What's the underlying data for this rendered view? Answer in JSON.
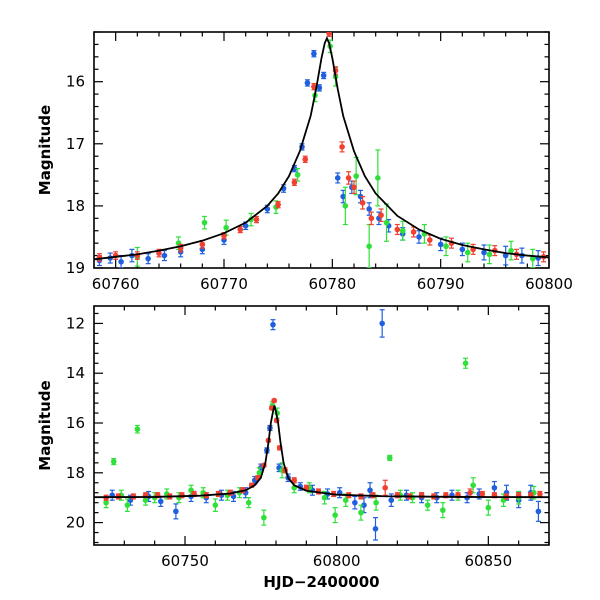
{
  "chart_data": [
    {
      "type": "scatter",
      "panel": "top",
      "xlabel": "",
      "ylabel": "Magnitude",
      "xlim": [
        60758,
        60800
      ],
      "ylim": [
        19.0,
        15.2
      ],
      "y_inverted": true,
      "xticks": [
        60760,
        60770,
        60780,
        60790,
        60800
      ],
      "yticks": [
        16,
        17,
        18,
        19
      ],
      "grid": false,
      "model_curve": {
        "name": "",
        "color": "#000000",
        "x": [
          60758,
          60760,
          60762,
          60764,
          60766,
          60768,
          60770,
          60772,
          60774,
          60775,
          60776,
          60777,
          60778,
          60778.5,
          60779,
          60779.3,
          60779.5,
          60779.7,
          60780,
          60780.5,
          60781,
          60782,
          60783,
          60784,
          60786,
          60788,
          60790,
          60792,
          60794,
          60796,
          60798,
          60800
        ],
        "y": [
          18.86,
          18.82,
          18.78,
          18.72,
          18.65,
          18.56,
          18.44,
          18.27,
          18.0,
          17.8,
          17.52,
          17.12,
          16.55,
          16.12,
          15.62,
          15.38,
          15.3,
          15.38,
          15.62,
          16.12,
          16.55,
          17.12,
          17.52,
          17.8,
          18.16,
          18.38,
          18.53,
          18.63,
          18.7,
          18.76,
          18.8,
          18.83
        ]
      },
      "series": [
        {
          "color": "#1f5fe0",
          "x": [
            60758.5,
            60759.5,
            60760.5,
            60761.5,
            60763,
            60764.5,
            60766,
            60768,
            60770,
            60772,
            60774,
            60775.5,
            60776.5,
            60777.2,
            60777.7,
            60778.3,
            60778.8,
            60779.2,
            60780.5,
            60781,
            60781.8,
            60782.6,
            60783.4,
            60784.3,
            60785.2,
            60786.5,
            60788,
            60790,
            60792,
            60794,
            60796,
            60797.5,
            60799
          ],
          "y": [
            18.88,
            18.84,
            18.9,
            18.8,
            18.85,
            18.8,
            18.74,
            18.7,
            18.55,
            18.32,
            18.05,
            17.72,
            17.4,
            17.05,
            16.02,
            15.55,
            16.1,
            15.9,
            17.55,
            17.85,
            17.7,
            17.85,
            18.05,
            18.2,
            18.32,
            18.45,
            18.5,
            18.62,
            18.7,
            18.75,
            18.8,
            18.8,
            18.84
          ],
          "yerr": [
            0.08,
            0.08,
            0.1,
            0.1,
            0.08,
            0.08,
            0.08,
            0.07,
            0.07,
            0.06,
            0.06,
            0.06,
            0.05,
            0.05,
            0.05,
            0.05,
            0.05,
            0.05,
            0.08,
            0.1,
            0.1,
            0.1,
            0.1,
            0.1,
            0.1,
            0.1,
            0.1,
            0.1,
            0.1,
            0.12,
            0.15,
            0.12,
            0.12
          ]
        },
        {
          "color": "#2fe03a",
          "x": [
            60762,
            60765.8,
            60768.2,
            60770.2,
            60772.5,
            60774.8,
            60776.8,
            60778.4,
            60779.8,
            60780.3,
            60781.2,
            60782.2,
            60783.4,
            60784.2,
            60785,
            60786.5,
            60788.5,
            60790.5,
            60792.5,
            60794.5,
            60796.5,
            60798.5
          ],
          "y": [
            18.82,
            18.6,
            18.27,
            18.35,
            18.22,
            18.02,
            17.5,
            16.22,
            15.43,
            15.92,
            18.0,
            17.52,
            18.65,
            17.55,
            18.27,
            18.4,
            18.45,
            18.65,
            18.75,
            18.78,
            18.72,
            18.85
          ],
          "yerr": [
            0.15,
            0.1,
            0.1,
            0.12,
            0.1,
            0.1,
            0.1,
            0.1,
            0.1,
            0.15,
            0.3,
            0.3,
            0.35,
            0.45,
            0.3,
            0.15,
            0.15,
            0.15,
            0.15,
            0.15,
            0.15,
            0.15
          ]
        },
        {
          "color": "#f04030",
          "x": [
            60758.5,
            60760,
            60762,
            60764,
            60766,
            60768,
            60770,
            60771.5,
            60773,
            60775,
            60776.5,
            60777.5,
            60778.3,
            60779.7,
            60780.3,
            60780.9,
            60781.5,
            60782,
            60782.8,
            60783.6,
            60784.5,
            60786,
            60787.5,
            60789,
            60791,
            60793,
            60795,
            60797,
            60799.5
          ],
          "y": [
            18.83,
            18.8,
            18.8,
            18.76,
            18.68,
            18.62,
            18.48,
            18.38,
            18.22,
            17.98,
            17.62,
            17.25,
            16.08,
            15.22,
            15.82,
            17.05,
            17.55,
            17.7,
            17.95,
            18.2,
            18.15,
            18.38,
            18.42,
            18.55,
            18.6,
            18.7,
            18.72,
            18.78,
            18.82
          ],
          "yerr": [
            0.06,
            0.06,
            0.06,
            0.06,
            0.06,
            0.06,
            0.05,
            0.05,
            0.05,
            0.05,
            0.05,
            0.05,
            0.05,
            0.05,
            0.06,
            0.08,
            0.1,
            0.1,
            0.1,
            0.1,
            0.1,
            0.08,
            0.08,
            0.08,
            0.08,
            0.08,
            0.08,
            0.08,
            0.08
          ]
        }
      ]
    },
    {
      "type": "scatter",
      "panel": "bottom",
      "xlabel": "HJD−2400000",
      "ylabel": "Magnitude",
      "xlim": [
        60720,
        60870
      ],
      "ylim": [
        20.9,
        11.3
      ],
      "y_inverted": true,
      "xticks": [
        60750,
        60800,
        60850
      ],
      "yticks": [
        12,
        14,
        16,
        18,
        20
      ],
      "grid": false,
      "model_curve": {
        "name": "",
        "color": "#000000",
        "x": [
          60720,
          60740,
          60755,
          60765,
          60770,
          60773,
          60775,
          60776.5,
          60777.5,
          60778.3,
          60779,
          60779.5,
          60780,
          60780.7,
          60781.5,
          60782.5,
          60784,
          60786,
          60790,
          60800,
          60815,
          60840,
          60870
        ],
        "y": [
          18.98,
          18.97,
          18.92,
          18.83,
          18.7,
          18.5,
          18.2,
          17.6,
          16.8,
          16.0,
          15.55,
          15.3,
          15.55,
          16.0,
          16.8,
          17.6,
          18.2,
          18.5,
          18.72,
          18.88,
          18.94,
          18.97,
          18.98
        ]
      },
      "series": [
        {
          "color": "#1f5fe0",
          "x": [
            60726,
            60732,
            60738,
            60742,
            60747,
            60752,
            60757,
            60762,
            60766,
            60770,
            60773,
            60775,
            60777,
            60778,
            60779,
            60781,
            60784,
            60788,
            60792,
            60797,
            60801,
            60806,
            60809,
            60811,
            60812.8,
            60815,
            60818,
            60823,
            60828,
            60833,
            60838,
            60843,
            60847,
            60852,
            60856,
            60860,
            60864,
            60866.5
          ],
          "y": [
            18.9,
            19.1,
            18.95,
            19.15,
            19.55,
            18.95,
            19.0,
            18.9,
            18.95,
            18.8,
            18.3,
            17.8,
            17.1,
            16.2,
            12.05,
            17.8,
            18.2,
            18.55,
            18.7,
            18.85,
            18.8,
            19.2,
            19.3,
            18.7,
            20.25,
            12.0,
            19.1,
            18.9,
            19.0,
            19.0,
            18.9,
            19.0,
            18.85,
            18.6,
            18.8,
            19.1,
            18.8,
            19.55
          ],
          "yerr": [
            0.2,
            0.2,
            0.2,
            0.2,
            0.3,
            0.2,
            0.2,
            0.2,
            0.2,
            0.2,
            0.15,
            0.15,
            0.1,
            0.1,
            0.2,
            0.15,
            0.15,
            0.15,
            0.2,
            0.2,
            0.2,
            0.25,
            0.3,
            0.3,
            0.45,
            0.55,
            0.25,
            0.2,
            0.2,
            0.2,
            0.2,
            0.2,
            0.2,
            0.25,
            0.3,
            0.3,
            0.3,
            0.4
          ]
        },
        {
          "color": "#2fe03a",
          "x": [
            60724,
            60726.5,
            60729,
            60731,
            60734.3,
            60737,
            60740,
            60744,
            60748,
            60752,
            60756,
            60760,
            60764,
            60768,
            60771,
            60774.5,
            60776,
            60778.8,
            60780.4,
            60782,
            60786,
            60791,
            60796,
            60799.5,
            60803,
            60808,
            60813,
            60817.5,
            60821,
            60825,
            60830,
            60835,
            60840,
            60842.5,
            60845,
            60850,
            60855,
            60860,
            60865
          ],
          "y": [
            19.2,
            17.55,
            18.9,
            19.3,
            16.25,
            19.1,
            19.0,
            18.85,
            19.0,
            18.7,
            18.8,
            19.3,
            18.9,
            18.8,
            19.2,
            18.0,
            19.8,
            15.3,
            15.6,
            17.9,
            18.6,
            18.6,
            19.0,
            19.7,
            19.1,
            19.6,
            19.2,
            17.4,
            18.9,
            19.0,
            19.3,
            19.5,
            18.9,
            13.6,
            18.5,
            19.4,
            19.1,
            19.0,
            18.8
          ],
          "yerr": [
            0.2,
            0.12,
            0.2,
            0.25,
            0.15,
            0.2,
            0.2,
            0.2,
            0.2,
            0.2,
            0.2,
            0.25,
            0.2,
            0.2,
            0.2,
            0.2,
            0.3,
            0.15,
            0.2,
            0.3,
            0.2,
            0.2,
            0.25,
            0.3,
            0.25,
            0.3,
            0.3,
            0.1,
            0.2,
            0.2,
            0.2,
            0.3,
            0.2,
            0.2,
            0.3,
            0.3,
            0.25,
            0.25,
            0.25
          ]
        },
        {
          "color": "#f04030",
          "x": [
            60724,
            60728,
            60733,
            60737,
            60741,
            60745,
            60749,
            60753,
            60757,
            60761,
            60765,
            60769,
            60772,
            60774,
            60776,
            60777.5,
            60778.6,
            60779.4,
            60780.2,
            60781.2,
            60783,
            60786,
            60790,
            60794,
            60799,
            60804,
            60808,
            60812,
            60816,
            60820,
            60824,
            60828,
            60832,
            60836,
            60840,
            60844,
            60848,
            60852,
            60856,
            60860,
            60864,
            60867
          ],
          "y": [
            19.0,
            18.95,
            18.95,
            18.9,
            18.9,
            18.95,
            18.9,
            18.85,
            18.9,
            18.85,
            18.8,
            18.7,
            18.5,
            18.2,
            17.7,
            16.7,
            15.4,
            15.1,
            15.9,
            17.0,
            17.9,
            18.3,
            18.6,
            18.75,
            18.85,
            18.9,
            18.95,
            18.9,
            18.6,
            18.9,
            18.95,
            18.9,
            18.95,
            18.9,
            18.9,
            18.8,
            18.85,
            18.9,
            18.95,
            18.9,
            18.9,
            18.85
          ],
          "yerr": [
            0.1,
            0.1,
            0.1,
            0.1,
            0.1,
            0.1,
            0.1,
            0.1,
            0.1,
            0.1,
            0.1,
            0.1,
            0.08,
            0.08,
            0.06,
            0.06,
            0.06,
            0.06,
            0.06,
            0.08,
            0.1,
            0.1,
            0.1,
            0.1,
            0.1,
            0.1,
            0.1,
            0.1,
            0.3,
            0.1,
            0.1,
            0.1,
            0.1,
            0.1,
            0.1,
            0.15,
            0.1,
            0.1,
            0.1,
            0.1,
            0.1,
            0.1
          ]
        }
      ]
    }
  ]
}
